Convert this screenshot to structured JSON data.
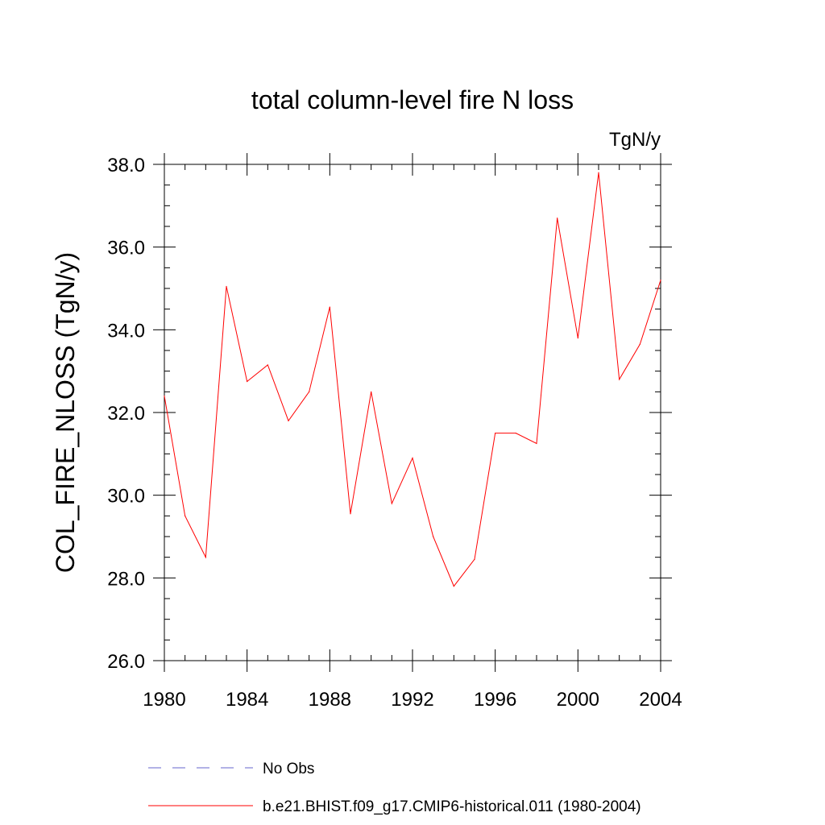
{
  "chart_data": {
    "type": "line",
    "title": "total column-level fire N loss",
    "units_label": "TgN/y",
    "ylabel": "COL_FIRE_NLOSS  (TgN/y)",
    "xlabel": "",
    "xlim": [
      1980,
      2004
    ],
    "ylim": [
      26.0,
      38.0
    ],
    "x_ticks": [
      "1980",
      "1984",
      "1988",
      "1992",
      "1996",
      "2000",
      "2004"
    ],
    "y_ticks": [
      "26.0",
      "28.0",
      "30.0",
      "32.0",
      "34.0",
      "36.0",
      "38.0"
    ],
    "x": [
      1980,
      1981,
      1982,
      1983,
      1984,
      1985,
      1986,
      1987,
      1988,
      1989,
      1990,
      1991,
      1992,
      1993,
      1994,
      1995,
      1996,
      1997,
      1998,
      1999,
      2000,
      2001,
      2002,
      2003,
      2004
    ],
    "series": [
      {
        "name": "b.e21.BHIST.f09_g17.CMIP6-historical.011 (1980-2004)",
        "color": "#ff0000",
        "style": "solid",
        "values": [
          32.4,
          29.5,
          28.5,
          35.05,
          32.75,
          33.15,
          31.8,
          32.5,
          34.55,
          29.55,
          32.5,
          29.8,
          30.9,
          29.0,
          27.8,
          28.45,
          31.5,
          31.5,
          31.25,
          36.7,
          33.8,
          37.8,
          32.8,
          33.65,
          35.2
        ]
      }
    ],
    "legend": [
      {
        "label": "No Obs",
        "color": "#6666cc",
        "style": "dashed"
      },
      {
        "label": "b.e21.BHIST.f09_g17.CMIP6-historical.011 (1980-2004)",
        "color": "#ff0000",
        "style": "solid"
      }
    ],
    "legend_position": "bottom",
    "grid": false
  }
}
